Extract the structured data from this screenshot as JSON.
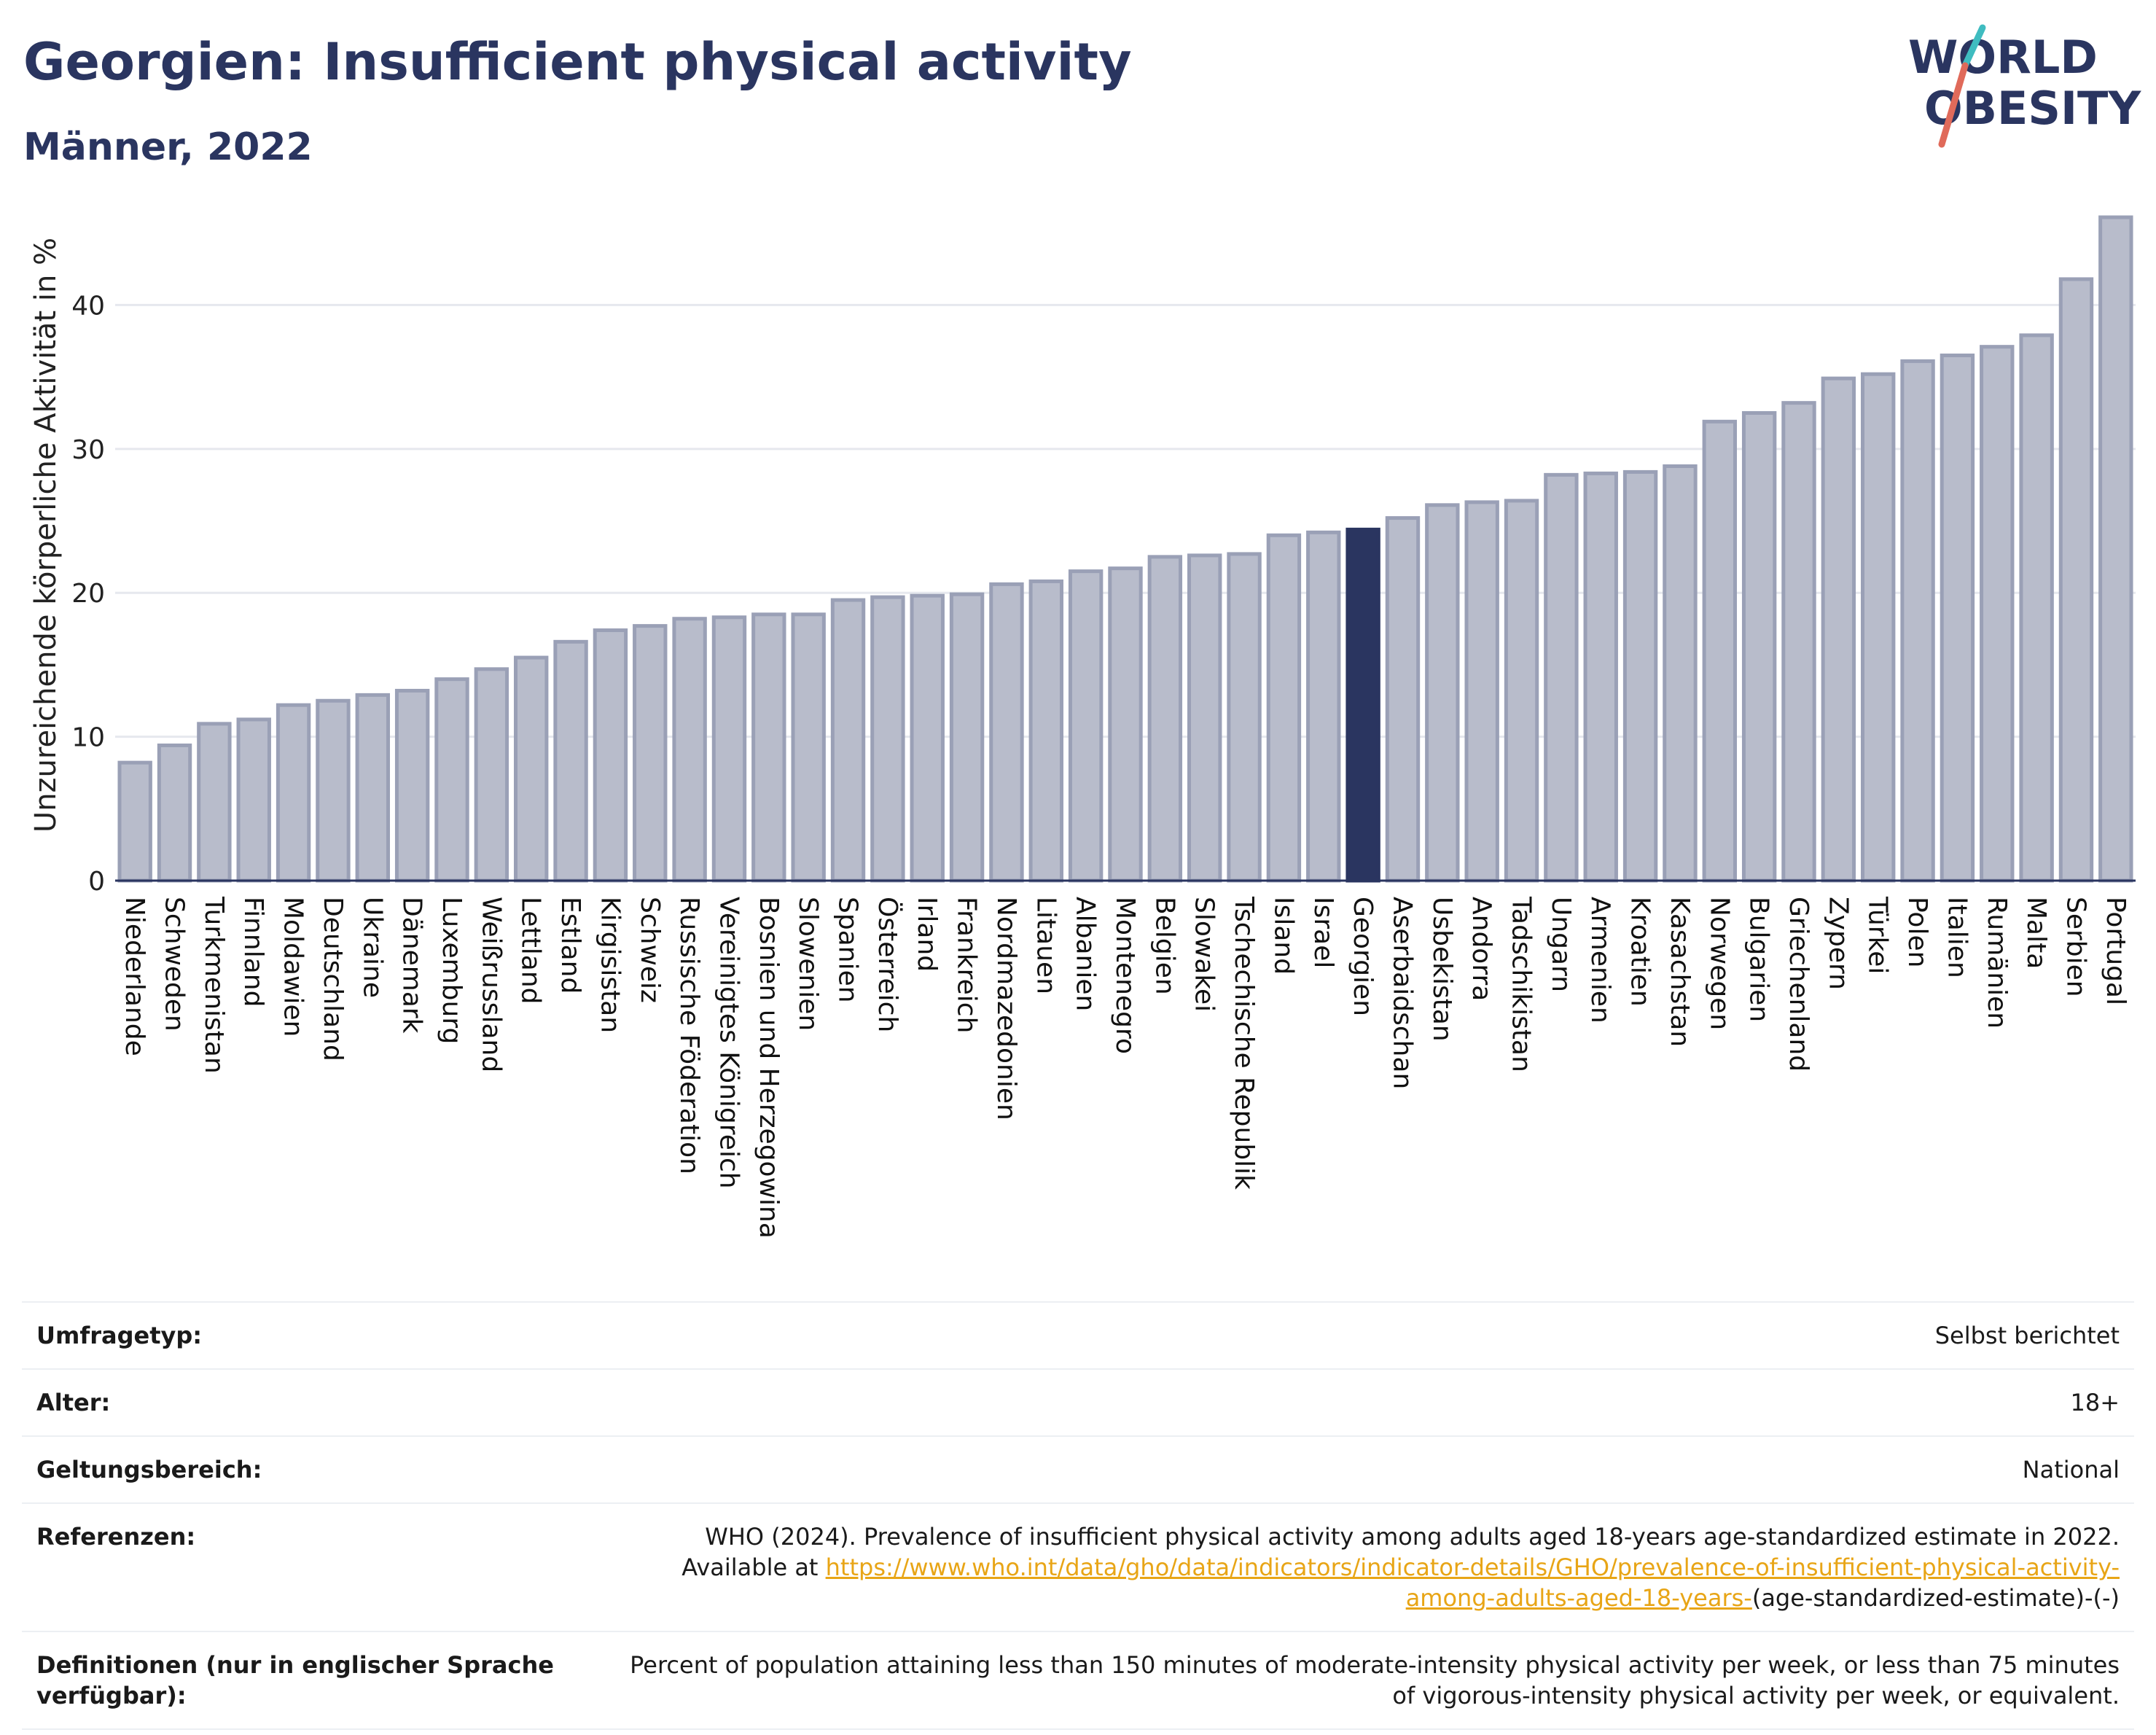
{
  "header": {
    "title": "Georgien: Insufficient physical activity",
    "subtitle": "Männer, 2022"
  },
  "logo": {
    "line1": "WORLD",
    "line2": "OBESITY"
  },
  "colors": {
    "bar": "#b8bccb",
    "bar_stroke": "#9aa0b6",
    "highlight": "#2a3560",
    "grid": "#e6e8ee",
    "link": "#e8a516"
  },
  "chart_data": {
    "type": "bar",
    "title": "Georgien: Insufficient physical activity",
    "subtitle": "Männer, 2022",
    "ylabel": "Unzureichende körperliche Aktivität in %",
    "xlabel": "",
    "ylim": [
      0,
      46
    ],
    "yticks": [
      0,
      10,
      20,
      30,
      40
    ],
    "grid": true,
    "highlight": "Georgien",
    "categories": [
      "Niederlande",
      "Schweden",
      "Turkmenistan",
      "Finnland",
      "Moldawien",
      "Deutschland",
      "Ukraine",
      "Dänemark",
      "Luxemburg",
      "Weißrussland",
      "Lettland",
      "Estland",
      "Kirgisistan",
      "Schweiz",
      "Russische Föderation",
      "Vereinigtes Königreich",
      "Bosnien und Herzegowina",
      "Slowenien",
      "Spanien",
      "Österreich",
      "Irland",
      "Frankreich",
      "Nordmazedonien",
      "Litauen",
      "Albanien",
      "Montenegro",
      "Belgien",
      "Slowakei",
      "Tschechische Republik",
      "Island",
      "Israel",
      "Georgien",
      "Aserbaidschan",
      "Usbekistan",
      "Andorra",
      "Tadschikistan",
      "Ungarn",
      "Armenien",
      "Kroatien",
      "Kasachstan",
      "Norwegen",
      "Bulgarien",
      "Griechenland",
      "Zypern",
      "Türkei",
      "Polen",
      "Italien",
      "Rumänien",
      "Malta",
      "Serbien",
      "Portugal"
    ],
    "values": [
      8.2,
      9.4,
      10.9,
      11.2,
      12.2,
      12.5,
      12.9,
      13.2,
      14.0,
      14.7,
      15.5,
      16.6,
      17.4,
      17.7,
      18.2,
      18.3,
      18.5,
      18.5,
      19.5,
      19.7,
      19.8,
      19.9,
      20.6,
      20.8,
      21.5,
      21.7,
      22.5,
      22.6,
      22.7,
      24.0,
      24.2,
      24.4,
      25.2,
      26.1,
      26.3,
      26.4,
      28.2,
      28.3,
      28.4,
      28.8,
      31.9,
      32.5,
      33.2,
      34.9,
      35.2,
      36.1,
      36.5,
      37.1,
      37.9,
      41.8,
      46.1
    ]
  },
  "info": {
    "rows": [
      {
        "key": "Umfragetyp:",
        "value": "Selbst berichtet"
      },
      {
        "key": "Alter:",
        "value": "18+"
      },
      {
        "key": "Geltungsbereich:",
        "value": "National"
      }
    ],
    "references": {
      "key": "Referenzen:",
      "text": "WHO (2024). Prevalence of insufficient physical activity among adults aged 18-years age-standardized estimate in 2022. Available at",
      "link": "https://www.who.int/data/gho/data/indicators/indicator-details/GHO/prevalence-of-insufficient-physical-activity-among-adults-aged-18-years-",
      "suffix": "(age-standardized-estimate)-(-)"
    },
    "definitions": {
      "key": "Definitionen (nur in englischer Sprache verfügbar):",
      "value": "Percent of population attaining less than 150 minutes of moderate-intensity physical activity per week, or less than 75 minutes of vigorous-intensity physical activity per week, or equivalent."
    }
  }
}
